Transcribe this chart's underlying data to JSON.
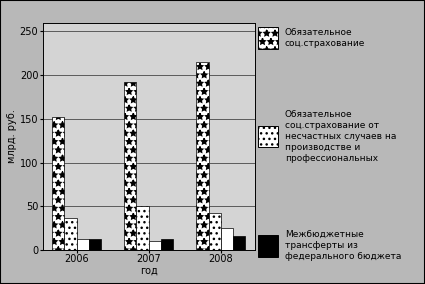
{
  "years": [
    "2006",
    "2007",
    "2008"
  ],
  "series": [
    {
      "name": "Обязательное\nсоц.страхование",
      "values": [
        152,
        192,
        215
      ],
      "hatch": "**",
      "facecolor": "white",
      "edgecolor": "black",
      "in_legend": true
    },
    {
      "name": "Обязательное\nсоц.страхование от\nнесчастных случаев на\nпроизводстве и\nпрофессиональных",
      "values": [
        37,
        50,
        42
      ],
      "hatch": "...",
      "facecolor": "white",
      "edgecolor": "black",
      "in_legend": true
    },
    {
      "name": "Межбюджетные\nтрансферты из\nфедерального бюджета",
      "values": [
        12,
        10,
        25
      ],
      "hatch": "",
      "facecolor": "white",
      "edgecolor": "black",
      "in_legend": false
    },
    {
      "name": "Межбюджетные\nтрансферты из\nфедерального бюджета",
      "values": [
        13,
        13,
        16
      ],
      "hatch": "",
      "facecolor": "black",
      "edgecolor": "black",
      "in_legend": true
    }
  ],
  "ylabel": "млрд. руб.",
  "xlabel": "год",
  "ylim": [
    0,
    260
  ],
  "yticks": [
    0,
    50,
    100,
    150,
    200,
    250
  ],
  "background_color": "#b8b8b8",
  "plot_bg_color": "#d4d4d4",
  "bar_width": 0.17,
  "axis_fontsize": 7,
  "legend_fontsize": 6.5
}
